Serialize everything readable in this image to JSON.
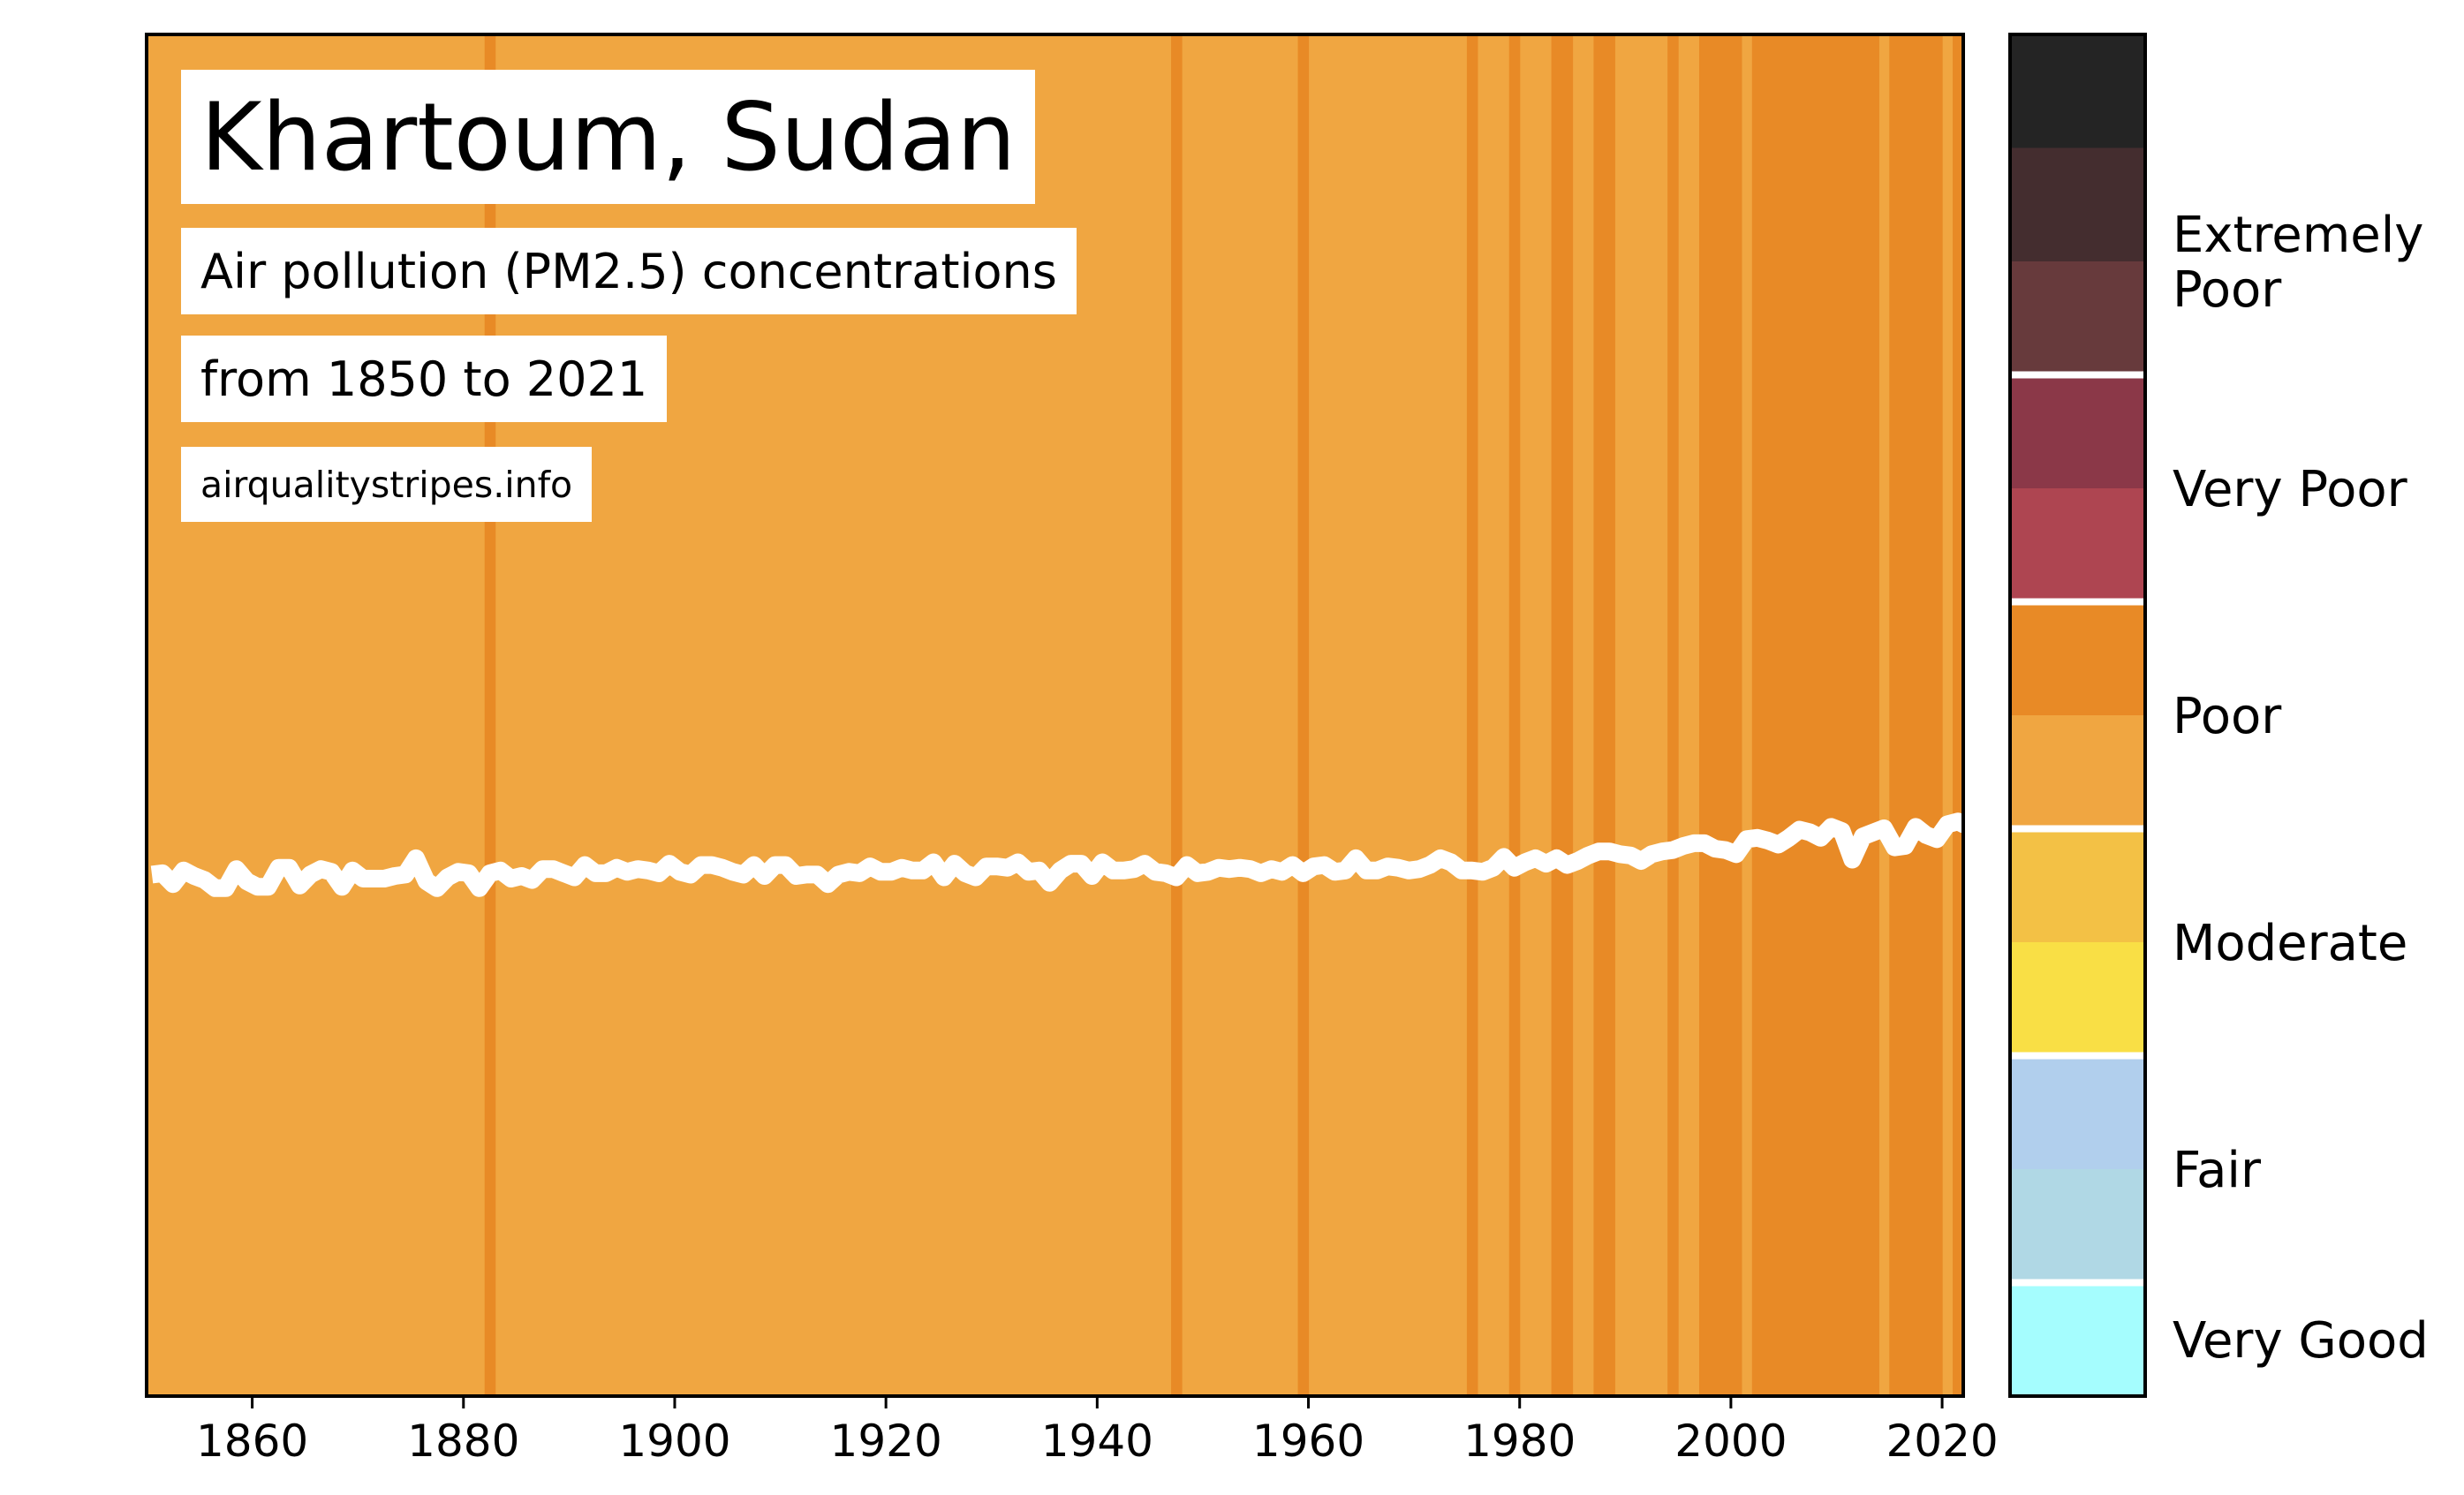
{
  "chart_data": {
    "type": "line",
    "title": "Khartoum, Sudan",
    "subtitle": "Air pollution (PM2.5) concentrations",
    "date_range": "from 1850 to 2021",
    "source": "airqualitystripes.info",
    "x_ticks": [
      1860,
      1880,
      1900,
      1920,
      1940,
      1960,
      1980,
      2000,
      2020
    ],
    "xlim": [
      1850,
      2022
    ],
    "grid": false,
    "line_color": "#ffffff",
    "stripe_colors": {
      "poor_light": "#f0a641",
      "poor_dark": "#e88a26"
    },
    "dark_stripe_years": [
      1882,
      1947,
      1959,
      1975,
      1979,
      1983,
      1984,
      1987,
      1988,
      1994,
      1997,
      1998,
      1999,
      2000,
      2002,
      2003,
      2004,
      2005,
      2006,
      2007,
      2008,
      2009,
      2010,
      2011,
      2012,
      2013,
      2015,
      2016,
      2017,
      2018,
      2019,
      2021
    ],
    "series": [
      {
        "x_start": 1850,
        "values": [
          0.383,
          0.384,
          0.376,
          0.386,
          0.382,
          0.379,
          0.373,
          0.373,
          0.387,
          0.378,
          0.374,
          0.374,
          0.388,
          0.388,
          0.375,
          0.383,
          0.387,
          0.385,
          0.374,
          0.386,
          0.38,
          0.38,
          0.38,
          0.382,
          0.383,
          0.395,
          0.378,
          0.373,
          0.381,
          0.385,
          0.384,
          0.373,
          0.384,
          0.386,
          0.38,
          0.382,
          0.379,
          0.387,
          0.387,
          0.384,
          0.381,
          0.39,
          0.384,
          0.384,
          0.388,
          0.385,
          0.387,
          0.386,
          0.384,
          0.391,
          0.385,
          0.383,
          0.39,
          0.39,
          0.388,
          0.385,
          0.383,
          0.39,
          0.382,
          0.39,
          0.39,
          0.382,
          0.383,
          0.383,
          0.376,
          0.383,
          0.385,
          0.384,
          0.389,
          0.385,
          0.385,
          0.388,
          0.386,
          0.386,
          0.392,
          0.381,
          0.391,
          0.384,
          0.381,
          0.389,
          0.389,
          0.388,
          0.392,
          0.385,
          0.386,
          0.377,
          0.386,
          0.391,
          0.391,
          0.382,
          0.392,
          0.386,
          0.386,
          0.387,
          0.391,
          0.385,
          0.384,
          0.381,
          0.39,
          0.384,
          0.385,
          0.388,
          0.387,
          0.388,
          0.387,
          0.384,
          0.387,
          0.385,
          0.39,
          0.384,
          0.389,
          0.39,
          0.385,
          0.386,
          0.395,
          0.386,
          0.386,
          0.389,
          0.388,
          0.386,
          0.387,
          0.39,
          0.395,
          0.392,
          0.386,
          0.386,
          0.385,
          0.388,
          0.396,
          0.388,
          0.392,
          0.395,
          0.391,
          0.395,
          0.39,
          0.393,
          0.397,
          0.4,
          0.4,
          0.398,
          0.397,
          0.393,
          0.398,
          0.4,
          0.401,
          0.404,
          0.406,
          0.406,
          0.402,
          0.401,
          0.398,
          0.409,
          0.41,
          0.408,
          0.405,
          0.41,
          0.416,
          0.414,
          0.41,
          0.418,
          0.415,
          0.394,
          0.411,
          0.414,
          0.417,
          0.403,
          0.404,
          0.418,
          0.412,
          0.409,
          0.42,
          0.422,
          0.42,
          0.421,
          0.424,
          0.425
        ],
        "ylim": [
          0,
          1
        ]
      }
    ]
  },
  "legend": {
    "categories": [
      "Extremely\nPoor",
      "Very Poor",
      "Poor",
      "Moderate",
      "Fair",
      "Very Good"
    ],
    "swatch_colors": [
      "#242424",
      "#442d2f",
      "#673a3c",
      "#8b3848",
      "#ae4551",
      "#e88a26",
      "#f0a641",
      "#f3c145",
      "#f9df45",
      "#b1cfed",
      "#b0d8e5",
      "#a5fdfe"
    ]
  }
}
